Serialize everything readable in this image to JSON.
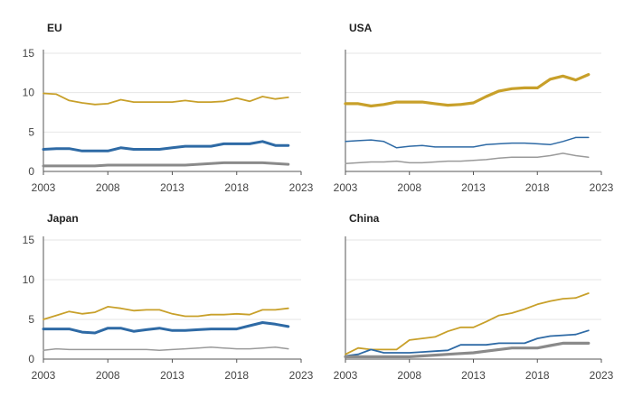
{
  "chart_data": [
    {
      "type": "line",
      "title": "EU",
      "x": [
        2003,
        2004,
        2005,
        2006,
        2007,
        2008,
        2009,
        2010,
        2011,
        2012,
        2013,
        2014,
        2015,
        2016,
        2017,
        2018,
        2019,
        2020,
        2021,
        2022
      ],
      "ylim": [
        0,
        15
      ],
      "xlim": [
        2003,
        2023
      ],
      "yticks": [
        0,
        5,
        10,
        15
      ],
      "xticks": [
        2003,
        2008,
        2013,
        2018,
        2023
      ],
      "grid": true,
      "series": [
        {
          "color": "#c8a02a",
          "width": 1.8,
          "values": [
            9.9,
            9.8,
            9.0,
            8.7,
            8.5,
            8.6,
            9.1,
            8.8,
            8.8,
            8.8,
            8.8,
            9.0,
            8.8,
            8.8,
            8.9,
            9.3,
            8.9,
            9.5,
            9.2,
            9.4
          ]
        },
        {
          "color": "#2e6aa5",
          "width": 3,
          "values": [
            2.8,
            2.9,
            2.9,
            2.6,
            2.6,
            2.6,
            3.0,
            2.8,
            2.8,
            2.8,
            3.0,
            3.2,
            3.2,
            3.2,
            3.5,
            3.5,
            3.5,
            3.8,
            3.3,
            3.3
          ]
        },
        {
          "color": "#8a8a8a",
          "width": 3,
          "values": [
            0.7,
            0.7,
            0.7,
            0.7,
            0.7,
            0.8,
            0.8,
            0.8,
            0.8,
            0.8,
            0.8,
            0.8,
            0.9,
            1.0,
            1.1,
            1.1,
            1.1,
            1.1,
            1.0,
            0.9
          ]
        }
      ]
    },
    {
      "type": "line",
      "title": "USA",
      "x": [
        2003,
        2004,
        2005,
        2006,
        2007,
        2008,
        2009,
        2010,
        2011,
        2012,
        2013,
        2014,
        2015,
        2016,
        2017,
        2018,
        2019,
        2020,
        2021,
        2022
      ],
      "ylim": [
        0,
        15
      ],
      "xlim": [
        2003,
        2023
      ],
      "yticks": [
        0,
        5,
        10,
        15
      ],
      "xticks": [
        2003,
        2008,
        2013,
        2018,
        2023
      ],
      "grid": true,
      "series": [
        {
          "color": "#c8a02a",
          "width": 3.2,
          "values": [
            8.6,
            8.6,
            8.3,
            8.5,
            8.8,
            8.8,
            8.8,
            8.6,
            8.4,
            8.5,
            8.7,
            9.5,
            10.2,
            10.5,
            10.6,
            10.6,
            11.7,
            12.1,
            11.6,
            12.3
          ]
        },
        {
          "color": "#2e6aa5",
          "width": 1.5,
          "values": [
            3.8,
            3.9,
            4.0,
            3.8,
            3.0,
            3.2,
            3.3,
            3.1,
            3.1,
            3.1,
            3.1,
            3.4,
            3.5,
            3.6,
            3.6,
            3.5,
            3.4,
            3.8,
            4.3,
            4.3
          ]
        },
        {
          "color": "#9a9a9a",
          "width": 1.5,
          "values": [
            1.0,
            1.1,
            1.2,
            1.2,
            1.3,
            1.1,
            1.1,
            1.2,
            1.3,
            1.3,
            1.4,
            1.5,
            1.7,
            1.8,
            1.8,
            1.8,
            2.0,
            2.3,
            2.0,
            1.8
          ]
        }
      ]
    },
    {
      "type": "line",
      "title": "Japan",
      "x": [
        2003,
        2004,
        2005,
        2006,
        2007,
        2008,
        2009,
        2010,
        2011,
        2012,
        2013,
        2014,
        2015,
        2016,
        2017,
        2018,
        2019,
        2020,
        2021,
        2022
      ],
      "ylim": [
        0,
        15
      ],
      "xlim": [
        2003,
        2023
      ],
      "yticks": [
        0,
        5,
        10,
        15
      ],
      "xticks": [
        2003,
        2008,
        2013,
        2018,
        2023
      ],
      "grid": true,
      "series": [
        {
          "color": "#c8a02a",
          "width": 1.8,
          "values": [
            5.0,
            5.5,
            6.0,
            5.7,
            5.9,
            6.6,
            6.4,
            6.1,
            6.2,
            6.2,
            5.7,
            5.4,
            5.4,
            5.6,
            5.6,
            5.7,
            5.6,
            6.2,
            6.2,
            6.4
          ]
        },
        {
          "color": "#2e6aa5",
          "width": 3,
          "values": [
            3.8,
            3.8,
            3.8,
            3.4,
            3.3,
            3.9,
            3.9,
            3.5,
            3.7,
            3.9,
            3.6,
            3.6,
            3.7,
            3.8,
            3.8,
            3.8,
            4.2,
            4.6,
            4.4,
            4.1
          ]
        },
        {
          "color": "#9a9a9a",
          "width": 1.5,
          "values": [
            1.1,
            1.3,
            1.2,
            1.2,
            1.2,
            1.2,
            1.2,
            1.2,
            1.2,
            1.1,
            1.2,
            1.3,
            1.4,
            1.5,
            1.4,
            1.3,
            1.3,
            1.4,
            1.5,
            1.3
          ]
        }
      ]
    },
    {
      "type": "line",
      "title": "China",
      "x": [
        2003,
        2004,
        2005,
        2006,
        2007,
        2008,
        2009,
        2010,
        2011,
        2012,
        2013,
        2014,
        2015,
        2016,
        2017,
        2018,
        2019,
        2020,
        2021,
        2022
      ],
      "ylim": [
        0,
        15
      ],
      "xlim": [
        2003,
        2023
      ],
      "yticks": [
        0,
        5,
        10,
        15
      ],
      "xticks": [
        2003,
        2008,
        2013,
        2018,
        2023
      ],
      "grid": true,
      "series": [
        {
          "color": "#c8a02a",
          "width": 1.8,
          "values": [
            0.6,
            1.4,
            1.2,
            1.2,
            1.2,
            2.4,
            2.6,
            2.8,
            3.5,
            4.0,
            4.0,
            4.7,
            5.5,
            5.8,
            6.3,
            6.9,
            7.3,
            7.6,
            7.7,
            8.3
          ]
        },
        {
          "color": "#2e6aa5",
          "width": 1.8,
          "values": [
            0.4,
            0.6,
            1.2,
            0.8,
            0.8,
            0.8,
            0.9,
            1.0,
            1.1,
            1.8,
            1.8,
            1.8,
            2.0,
            2.0,
            2.0,
            2.6,
            2.9,
            3.0,
            3.1,
            3.6
          ]
        },
        {
          "color": "#8a8a8a",
          "width": 3.2,
          "values": [
            0.3,
            0.3,
            0.3,
            0.3,
            0.3,
            0.3,
            0.4,
            0.5,
            0.6,
            0.7,
            0.8,
            1.0,
            1.2,
            1.4,
            1.4,
            1.4,
            1.7,
            2.0,
            2.0,
            2.0
          ]
        }
      ]
    }
  ]
}
